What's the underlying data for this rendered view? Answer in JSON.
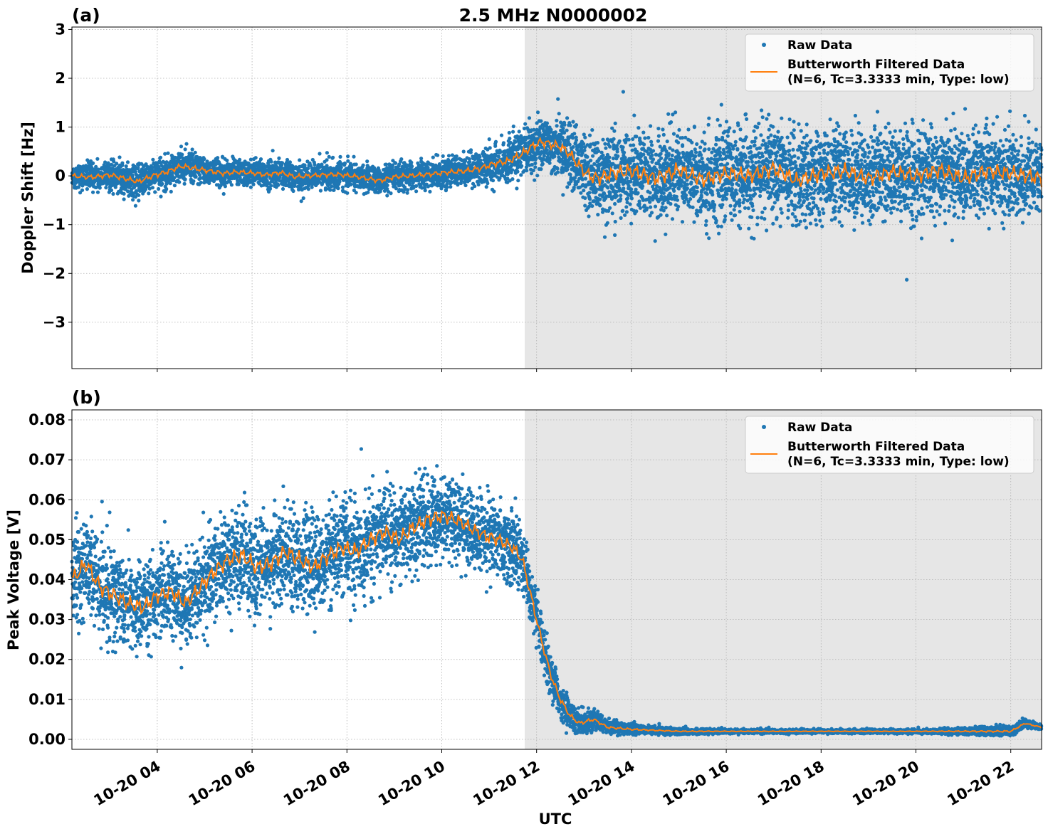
{
  "title": "2.5 MHz N0000002",
  "xlabel": "UTC",
  "colors": {
    "raw": "#1f77b4",
    "filtered": "#ff7f0e",
    "shade": "#e6e6e6",
    "grid": "#b0b0b0"
  },
  "x_ticks": [
    "10-20 04",
    "10-20 06",
    "10-20 08",
    "10-20 10",
    "10-20 12",
    "10-20 14",
    "10-20 16",
    "10-20 18",
    "10-20 20",
    "10-20 22"
  ],
  "legend": {
    "raw": "Raw Data",
    "filtered_line1": "Butterworth Filtered Data",
    "filtered_line2": "(N=6, Tc=3.3333 min, Type: low)"
  },
  "chart_data": [
    {
      "type": "scatter",
      "panel_label": "(a)",
      "ylabel": "Doppler Shift [Hz]",
      "xlim_hours": [
        2.2,
        22.65
      ],
      "ylim": [
        -3.95,
        3.05
      ],
      "y_ticks": [
        3,
        2,
        1,
        0,
        -1,
        -2,
        -3
      ],
      "y_tick_labels": [
        "3",
        "2",
        "1",
        "0",
        "−1",
        "−2",
        "−3"
      ],
      "shaded_region_hours": [
        11.75,
        22.65
      ],
      "grid": true,
      "legend_position": "top-right",
      "series": [
        {
          "name": "Butterworth Filtered Data",
          "kind": "line",
          "x_hours": [
            2.2,
            2.6,
            3.0,
            3.3,
            3.6,
            3.9,
            4.2,
            4.5,
            4.8,
            5.1,
            5.4,
            5.7,
            6.0,
            6.3,
            6.6,
            6.9,
            7.2,
            7.5,
            7.8,
            8.1,
            8.4,
            8.7,
            9.0,
            9.3,
            9.6,
            9.9,
            10.2,
            10.5,
            10.8,
            11.1,
            11.4,
            11.7,
            11.9,
            12.1,
            12.3,
            12.5,
            12.7,
            12.9,
            13.1,
            13.3,
            13.6,
            14.0,
            14.5,
            15.0,
            15.5,
            16.0,
            16.5,
            17.0,
            17.5,
            18.0,
            18.5,
            19.0,
            19.5,
            20.0,
            20.5,
            21.0,
            21.5,
            22.0,
            22.65
          ],
          "values": [
            0.0,
            -0.03,
            0.02,
            -0.05,
            -0.12,
            0.0,
            0.08,
            0.2,
            0.15,
            0.1,
            0.05,
            0.08,
            0.06,
            0.02,
            0.07,
            -0.02,
            0.0,
            0.02,
            0.03,
            0.0,
            -0.05,
            -0.1,
            -0.02,
            0.0,
            0.02,
            0.05,
            0.08,
            0.1,
            0.15,
            0.25,
            0.3,
            0.45,
            0.6,
            0.7,
            0.65,
            0.6,
            0.45,
            0.2,
            0.0,
            -0.05,
            0.05,
            0.1,
            -0.05,
            0.12,
            -0.08,
            0.05,
            0.0,
            0.15,
            -0.1,
            0.05,
            0.1,
            -0.05,
            0.08,
            0.0,
            0.12,
            -0.05,
            0.1,
            0.05,
            -0.05
          ]
        },
        {
          "name": "Raw Data",
          "kind": "scatter",
          "note": "spread envelope around filtered curve",
          "x_hours": [
            2.2,
            4.0,
            6.0,
            8.0,
            10.0,
            11.0,
            11.75,
            12.5,
            12.8,
            13.1,
            13.5,
            14.0,
            15.0,
            16.0,
            17.0,
            18.0,
            19.0,
            20.0,
            21.0,
            22.0,
            22.65
          ],
          "spread": [
            0.3,
            0.35,
            0.3,
            0.3,
            0.3,
            0.4,
            0.55,
            0.6,
            0.7,
            0.9,
            0.9,
            1.0,
            1.0,
            1.0,
            1.0,
            1.0,
            1.0,
            1.0,
            1.0,
            1.0,
            1.0
          ]
        }
      ]
    },
    {
      "type": "scatter",
      "panel_label": "(b)",
      "ylabel": "Peak Voltage [V]",
      "xlim_hours": [
        2.2,
        22.65
      ],
      "ylim": [
        -0.0025,
        0.0825
      ],
      "y_ticks": [
        0.08,
        0.07,
        0.06,
        0.05,
        0.04,
        0.03,
        0.02,
        0.01,
        0.0
      ],
      "y_tick_labels": [
        "0.08",
        "0.07",
        "0.06",
        "0.05",
        "0.04",
        "0.03",
        "0.02",
        "0.01",
        "0.00"
      ],
      "shaded_region_hours": [
        11.75,
        22.65
      ],
      "grid": true,
      "legend_position": "top-right",
      "series": [
        {
          "name": "Butterworth Filtered Data",
          "kind": "line",
          "x_hours": [
            2.2,
            2.5,
            2.8,
            3.1,
            3.4,
            3.7,
            4.0,
            4.3,
            4.6,
            4.9,
            5.2,
            5.5,
            5.8,
            6.1,
            6.4,
            6.7,
            7.0,
            7.3,
            7.6,
            7.9,
            8.2,
            8.5,
            8.8,
            9.1,
            9.4,
            9.7,
            10.0,
            10.3,
            10.6,
            10.9,
            11.2,
            11.5,
            11.7,
            11.9,
            12.1,
            12.3,
            12.5,
            12.7,
            12.9,
            13.2,
            13.5,
            14.0,
            15.0,
            16.0,
            17.0,
            18.0,
            19.0,
            20.0,
            21.0,
            22.0,
            22.3,
            22.65
          ],
          "values": [
            0.04,
            0.044,
            0.038,
            0.036,
            0.034,
            0.033,
            0.036,
            0.037,
            0.034,
            0.038,
            0.042,
            0.045,
            0.046,
            0.043,
            0.044,
            0.047,
            0.045,
            0.043,
            0.046,
            0.048,
            0.047,
            0.05,
            0.052,
            0.05,
            0.053,
            0.055,
            0.056,
            0.055,
            0.053,
            0.051,
            0.05,
            0.048,
            0.045,
            0.035,
            0.025,
            0.016,
            0.01,
            0.006,
            0.004,
            0.005,
            0.003,
            0.0025,
            0.002,
            0.002,
            0.002,
            0.002,
            0.002,
            0.002,
            0.002,
            0.002,
            0.004,
            0.003
          ]
        },
        {
          "name": "Raw Data",
          "kind": "scatter",
          "note": "spread envelope around filtered curve",
          "x_hours": [
            2.2,
            4.0,
            6.0,
            8.0,
            9.5,
            10.5,
            11.5,
            11.8,
            12.2,
            12.6,
            13.0,
            13.5,
            14.5,
            16.0,
            20.0,
            22.0,
            22.65
          ],
          "spread": [
            0.013,
            0.012,
            0.013,
            0.013,
            0.012,
            0.011,
            0.01,
            0.008,
            0.006,
            0.004,
            0.003,
            0.002,
            0.001,
            0.0006,
            0.0005,
            0.0015,
            0.0008
          ]
        }
      ]
    }
  ]
}
